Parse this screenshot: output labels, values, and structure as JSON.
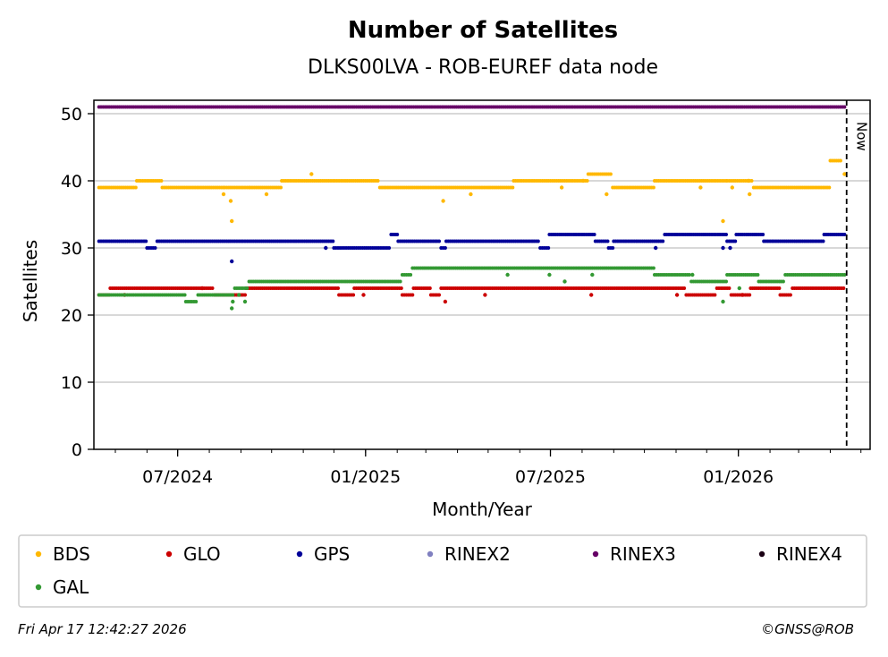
{
  "chart_data": {
    "type": "scatter",
    "title": "Number of Satellites",
    "subtitle": "DLKS00LVA - ROB-EUREF data node",
    "xlabel": "Month/Year",
    "ylabel": "Satellites",
    "x_major_ticks": [
      "2024-07-01",
      "2025-01-01",
      "2025-07-01",
      "2026-01-01"
    ],
    "x_tick_labels": [
      "07/2024",
      "01/2025",
      "07/2025",
      "01/2026"
    ],
    "x_range": [
      "2024-04-10",
      "2026-05-10"
    ],
    "ylim": [
      0,
      52
    ],
    "y_ticks": [
      0,
      10,
      20,
      30,
      40,
      50
    ],
    "grid": "horizontal",
    "now_marker": {
      "date": "2026-04-17",
      "label": "Now"
    },
    "legend_position": "bottom",
    "series": [
      {
        "name": "BDS",
        "color": "#FFB800",
        "segments": [
          [
            "2024-04-15",
            "2024-05-21",
            39
          ],
          [
            "2024-05-22",
            "2024-06-15",
            40
          ],
          [
            "2024-06-16",
            "2024-08-15",
            39
          ],
          [
            "2024-08-16",
            "2024-09-09",
            39
          ],
          [
            "2024-09-10",
            "2024-10-10",
            39
          ],
          [
            "2024-10-11",
            "2025-01-14",
            40
          ],
          [
            "2025-01-15",
            "2025-05-25",
            39
          ],
          [
            "2025-05-26",
            "2025-08-06",
            40
          ],
          [
            "2025-08-07",
            "2025-08-30",
            41
          ],
          [
            "2025-08-31",
            "2025-10-10",
            39
          ],
          [
            "2025-10-11",
            "2025-12-20",
            40
          ],
          [
            "2025-12-21",
            "2026-01-15",
            40
          ],
          [
            "2026-01-16",
            "2026-03-31",
            39
          ],
          [
            "2026-04-01",
            "2026-04-12",
            43
          ]
        ],
        "outliers": [
          [
            "2024-08-15",
            38
          ],
          [
            "2024-08-22",
            37
          ],
          [
            "2024-08-23",
            34
          ],
          [
            "2024-09-26",
            38
          ],
          [
            "2024-11-09",
            41
          ],
          [
            "2025-03-18",
            37
          ],
          [
            "2025-04-14",
            38
          ],
          [
            "2025-07-12",
            39
          ],
          [
            "2025-08-02",
            40
          ],
          [
            "2025-08-25",
            38
          ],
          [
            "2025-11-25",
            39
          ],
          [
            "2025-12-17",
            34
          ],
          [
            "2025-12-26",
            39
          ],
          [
            "2026-01-11",
            40
          ],
          [
            "2026-01-12",
            38
          ],
          [
            "2026-04-15",
            41
          ]
        ]
      },
      {
        "name": "GLO",
        "color": "#CC0000",
        "segments": [
          [
            "2024-04-15",
            "2024-04-25",
            23
          ],
          [
            "2024-04-26",
            "2024-08-05",
            24
          ],
          [
            "2024-08-06",
            "2024-09-05",
            23
          ],
          [
            "2024-09-06",
            "2024-12-05",
            24
          ],
          [
            "2024-12-06",
            "2024-12-20",
            23
          ],
          [
            "2024-12-21",
            "2025-02-05",
            24
          ],
          [
            "2025-02-06",
            "2025-02-16",
            23
          ],
          [
            "2025-02-17",
            "2025-03-05",
            24
          ],
          [
            "2025-03-06",
            "2025-03-15",
            23
          ],
          [
            "2025-03-16",
            "2025-11-10",
            24
          ],
          [
            "2025-11-11",
            "2025-12-10",
            23
          ],
          [
            "2025-12-11",
            "2025-12-24",
            24
          ],
          [
            "2025-12-25",
            "2026-01-12",
            23
          ],
          [
            "2026-01-13",
            "2026-02-10",
            24
          ],
          [
            "2026-02-11",
            "2026-02-22",
            23
          ],
          [
            "2026-02-23",
            "2026-04-15",
            24
          ]
        ],
        "outliers": [
          [
            "2024-05-10",
            23
          ],
          [
            "2024-07-25",
            24
          ],
          [
            "2024-12-30",
            23
          ],
          [
            "2025-03-20",
            22
          ],
          [
            "2025-04-28",
            23
          ],
          [
            "2025-08-10",
            23
          ],
          [
            "2025-11-02",
            23
          ],
          [
            "2026-01-05",
            23
          ]
        ]
      },
      {
        "name": "GPS",
        "color": "#000099",
        "segments": [
          [
            "2024-04-15",
            "2024-05-31",
            31
          ],
          [
            "2024-06-01",
            "2024-06-10",
            30
          ],
          [
            "2024-06-11",
            "2024-11-30",
            31
          ],
          [
            "2024-12-01",
            "2025-01-25",
            30
          ],
          [
            "2025-01-26",
            "2025-02-01",
            32
          ],
          [
            "2025-02-02",
            "2025-03-15",
            31
          ],
          [
            "2025-03-16",
            "2025-03-20",
            30
          ],
          [
            "2025-03-21",
            "2025-06-20",
            31
          ],
          [
            "2025-06-21",
            "2025-06-29",
            30
          ],
          [
            "2025-06-30",
            "2025-08-13",
            32
          ],
          [
            "2025-08-14",
            "2025-08-26",
            31
          ],
          [
            "2025-08-27",
            "2025-08-31",
            30
          ],
          [
            "2025-09-01",
            "2025-10-20",
            31
          ],
          [
            "2025-10-21",
            "2025-12-20",
            32
          ],
          [
            "2025-12-21",
            "2025-12-29",
            31
          ],
          [
            "2025-12-30",
            "2026-01-25",
            32
          ],
          [
            "2026-01-26",
            "2026-03-25",
            31
          ],
          [
            "2026-03-26",
            "2026-04-15",
            32
          ]
        ],
        "outliers": [
          [
            "2024-08-23",
            28
          ],
          [
            "2024-11-23",
            30
          ],
          [
            "2025-10-12",
            30
          ],
          [
            "2025-12-17",
            30
          ],
          [
            "2025-12-24",
            30
          ]
        ]
      },
      {
        "name": "RINEX2",
        "color": "#8080C0",
        "segments": [],
        "outliers": []
      },
      {
        "name": "RINEX3",
        "color": "#660066",
        "segments": [
          [
            "2024-04-15",
            "2026-04-15",
            51
          ]
        ],
        "outliers": []
      },
      {
        "name": "RINEX4",
        "color": "#1A0014",
        "segments": [],
        "outliers": []
      },
      {
        "name": "GAL",
        "color": "#339933",
        "segments": [
          [
            "2024-04-15",
            "2024-07-08",
            23
          ],
          [
            "2024-07-09",
            "2024-07-20",
            22
          ],
          [
            "2024-07-21",
            "2024-08-25",
            23
          ],
          [
            "2024-08-26",
            "2024-09-08",
            24
          ],
          [
            "2024-09-09",
            "2025-02-05",
            25
          ],
          [
            "2025-02-06",
            "2025-02-15",
            26
          ],
          [
            "2025-02-16",
            "2025-10-10",
            27
          ],
          [
            "2025-10-11",
            "2025-11-15",
            26
          ],
          [
            "2025-11-16",
            "2025-12-20",
            25
          ],
          [
            "2025-12-21",
            "2026-01-20",
            26
          ],
          [
            "2026-01-21",
            "2026-02-15",
            25
          ],
          [
            "2026-02-16",
            "2026-04-15",
            26
          ]
        ],
        "outliers": [
          [
            "2024-08-23",
            21
          ],
          [
            "2024-08-24",
            22
          ],
          [
            "2024-08-30",
            23
          ],
          [
            "2024-09-05",
            22
          ],
          [
            "2025-05-20",
            26
          ],
          [
            "2025-06-30",
            26
          ],
          [
            "2025-07-15",
            25
          ],
          [
            "2025-08-11",
            26
          ],
          [
            "2025-11-17",
            26
          ],
          [
            "2025-12-17",
            22
          ],
          [
            "2026-01-02",
            24
          ]
        ]
      }
    ]
  },
  "legend": {
    "items": [
      {
        "name": "BDS",
        "color": "#FFB800"
      },
      {
        "name": "GLO",
        "color": "#CC0000"
      },
      {
        "name": "GPS",
        "color": "#000099"
      },
      {
        "name": "RINEX2",
        "color": "#8080C0"
      },
      {
        "name": "RINEX3",
        "color": "#660066"
      },
      {
        "name": "RINEX4",
        "color": "#1A0014"
      },
      {
        "name": "GAL",
        "color": "#339933"
      }
    ]
  },
  "footer": {
    "timestamp": "Fri Apr 17 12:42:27 2026",
    "credit": "©GNSS@ROB"
  }
}
